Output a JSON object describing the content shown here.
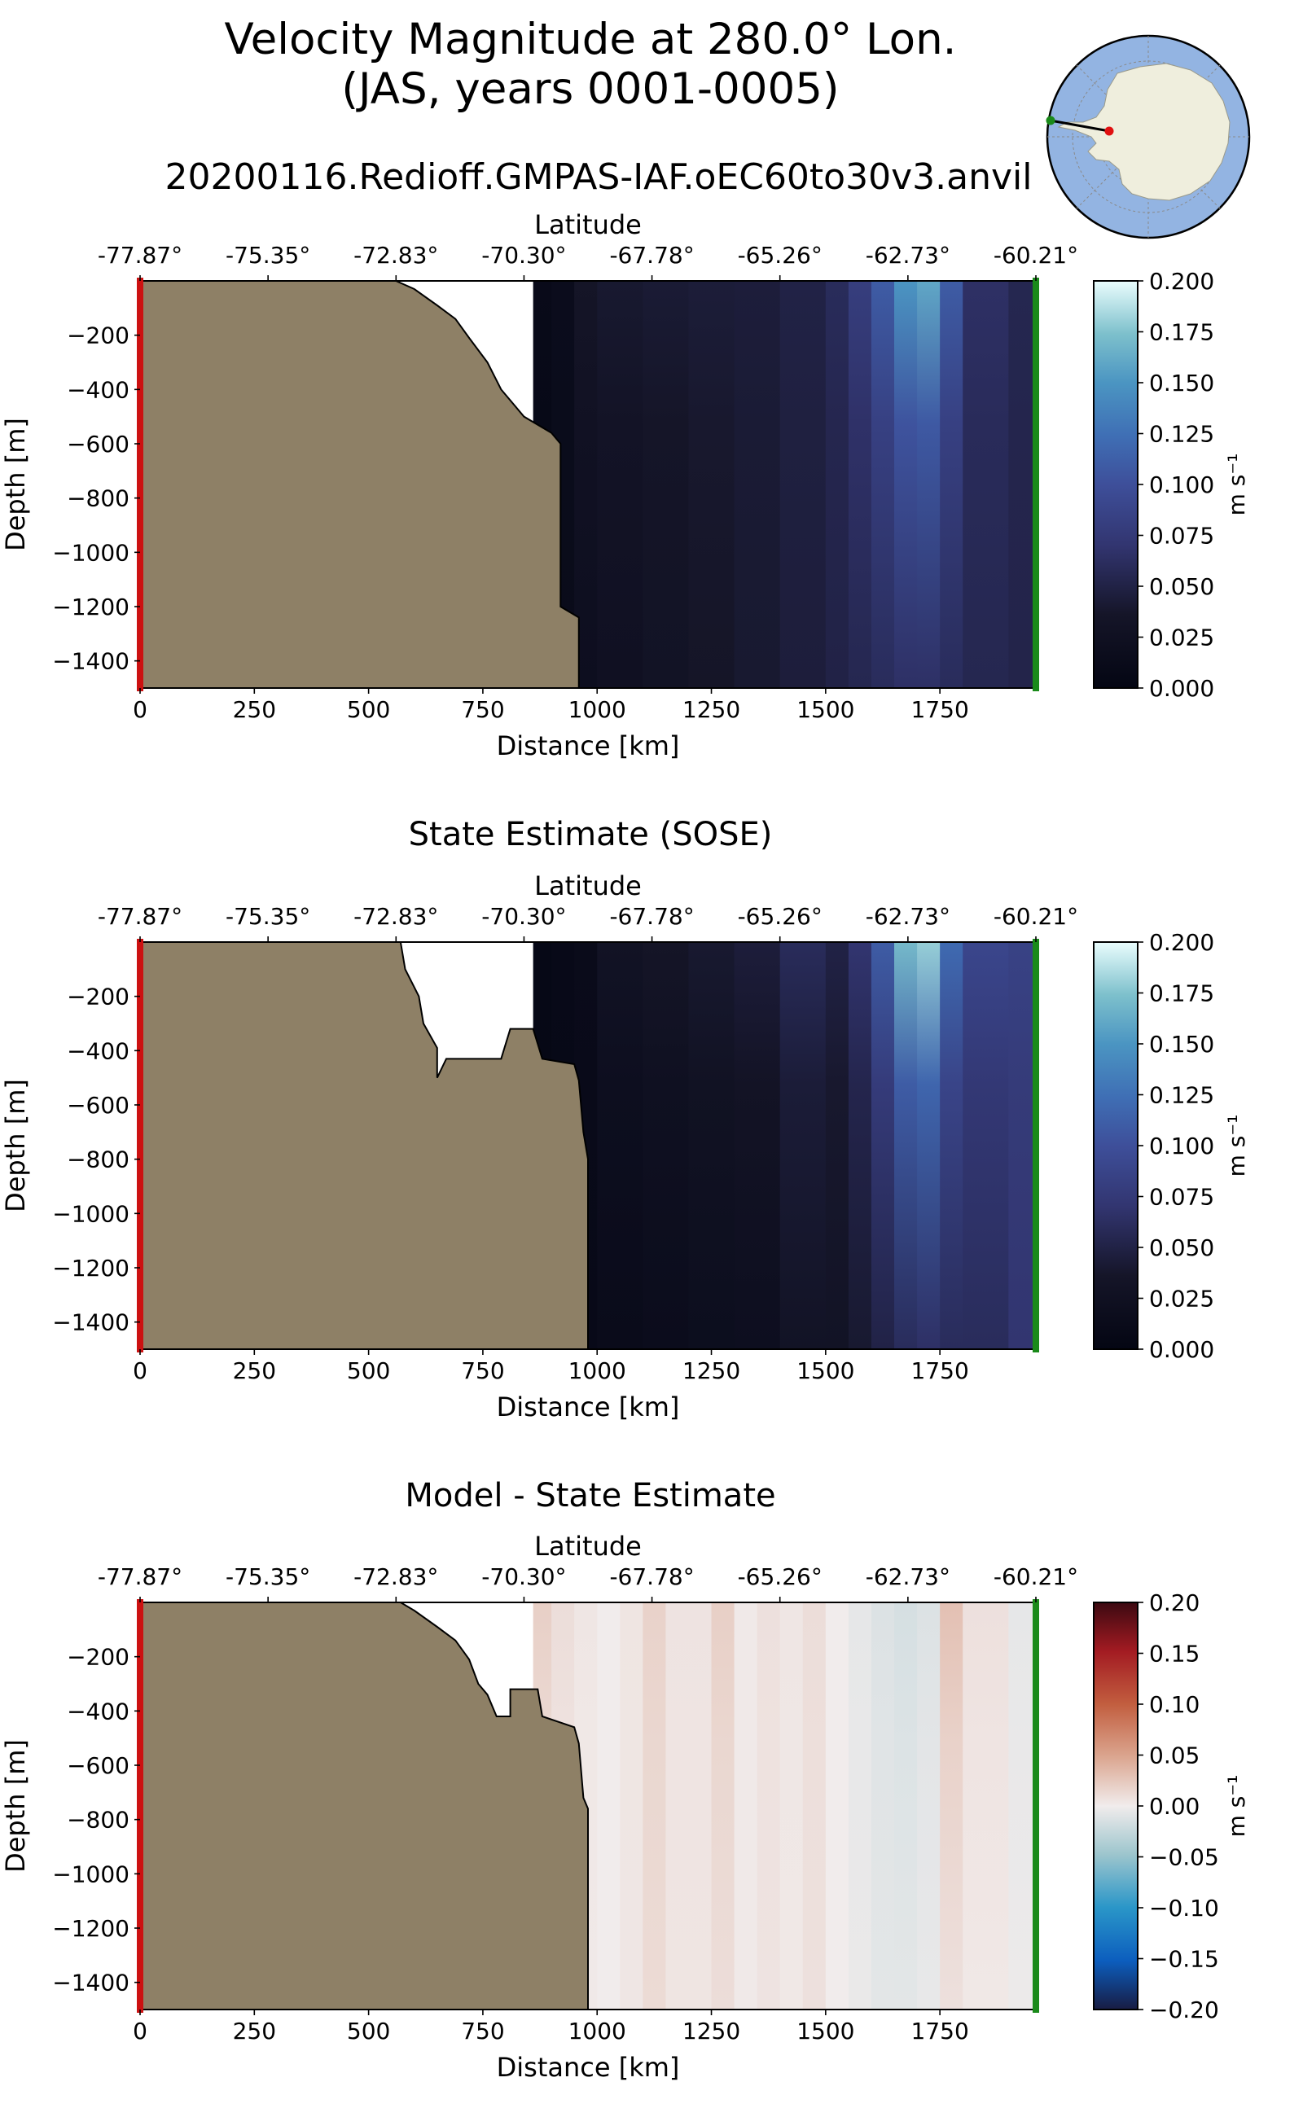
{
  "figure": {
    "title_line1": "Velocity Magnitude at 280.0° Lon.",
    "title_line2": "(JAS, years 0001-0005)",
    "subtitle": "20200116.Redioff.GMPAS-IAF.oEC60to30v3.anvil"
  },
  "colors": {
    "land": "#8e8066",
    "start_marker": "#cc1111",
    "end_marker": "#1a8a1a",
    "ocean_disk": "#93b4e2",
    "antarctica": "#efeedd"
  },
  "chart_data": [
    {
      "type": "heatmap",
      "title": "",
      "xlabel": "Distance [km]",
      "ylabel": "Depth [m]",
      "top_axis_label": "Latitude",
      "xlim": [
        0,
        1960
      ],
      "ylim": [
        -1500,
        0
      ],
      "xticks": [
        0,
        250,
        500,
        750,
        1000,
        1250,
        1500,
        1750
      ],
      "yticks": [
        -200,
        -400,
        -600,
        -800,
        -1000,
        -1200,
        -1400
      ],
      "lat_ticks": [
        "-77.87°",
        "-75.35°",
        "-72.83°",
        "-70.30°",
        "-67.78°",
        "-65.26°",
        "-62.73°",
        "-60.21°"
      ],
      "colorbar": {
        "label": "m s⁻¹",
        "min": 0.0,
        "max": 0.2,
        "ticks": [
          "0.000",
          "0.025",
          "0.050",
          "0.075",
          "0.100",
          "0.125",
          "0.150",
          "0.175",
          "0.200"
        ],
        "colormap": "ice"
      },
      "bathymetry_depth_m": [
        [
          0,
          0
        ],
        [
          560,
          0
        ],
        [
          600,
          -30
        ],
        [
          650,
          -90
        ],
        [
          690,
          -140
        ],
        [
          720,
          -210
        ],
        [
          760,
          -300
        ],
        [
          790,
          -400
        ],
        [
          840,
          -500
        ],
        [
          900,
          -560
        ],
        [
          920,
          -600
        ],
        [
          920,
          -1200
        ],
        [
          960,
          -1240
        ],
        [
          960,
          -1500
        ]
      ],
      "velocity_profile": {
        "x_km": [
          860,
          900,
          950,
          1000,
          1100,
          1200,
          1300,
          1400,
          1500,
          1550,
          1600,
          1650,
          1700,
          1750,
          1800,
          1900,
          1960
        ],
        "surface": [
          0.01,
          0.015,
          0.035,
          0.04,
          0.042,
          0.044,
          0.045,
          0.05,
          0.06,
          0.08,
          0.11,
          0.15,
          0.16,
          0.11,
          0.065,
          0.055,
          0.05
        ],
        "bottom": [
          0.005,
          0.012,
          0.02,
          0.025,
          0.03,
          0.035,
          0.04,
          0.045,
          0.05,
          0.055,
          0.06,
          0.065,
          0.065,
          0.06,
          0.055,
          0.052,
          0.05
        ]
      }
    },
    {
      "type": "heatmap",
      "title": "State Estimate (SOSE)",
      "xlabel": "Distance [km]",
      "ylabel": "Depth [m]",
      "top_axis_label": "Latitude",
      "xlim": [
        0,
        1960
      ],
      "ylim": [
        -1500,
        0
      ],
      "xticks": [
        0,
        250,
        500,
        750,
        1000,
        1250,
        1500,
        1750
      ],
      "yticks": [
        -200,
        -400,
        -600,
        -800,
        -1000,
        -1200,
        -1400
      ],
      "lat_ticks": [
        "-77.87°",
        "-75.35°",
        "-72.83°",
        "-70.30°",
        "-67.78°",
        "-65.26°",
        "-62.73°",
        "-60.21°"
      ],
      "colorbar": {
        "label": "m s⁻¹",
        "min": 0.0,
        "max": 0.2,
        "ticks": [
          "0.000",
          "0.025",
          "0.050",
          "0.075",
          "0.100",
          "0.125",
          "0.150",
          "0.175",
          "0.200"
        ],
        "colormap": "ice"
      },
      "bathymetry_depth_m": [
        [
          0,
          0
        ],
        [
          570,
          0
        ],
        [
          580,
          -100
        ],
        [
          610,
          -200
        ],
        [
          620,
          -300
        ],
        [
          650,
          -390
        ],
        [
          650,
          -500
        ],
        [
          670,
          -430
        ],
        [
          790,
          -430
        ],
        [
          810,
          -320
        ],
        [
          860,
          -320
        ],
        [
          880,
          -430
        ],
        [
          950,
          -450
        ],
        [
          960,
          -510
        ],
        [
          970,
          -700
        ],
        [
          980,
          -800
        ],
        [
          980,
          -1500
        ]
      ],
      "velocity_profile": {
        "x_km": [
          860,
          900,
          950,
          1000,
          1100,
          1200,
          1300,
          1400,
          1500,
          1550,
          1600,
          1650,
          1700,
          1750,
          1800,
          1900,
          1960
        ],
        "surface": [
          0.005,
          0.008,
          0.012,
          0.03,
          0.035,
          0.04,
          0.045,
          0.06,
          0.05,
          0.07,
          0.11,
          0.17,
          0.18,
          0.12,
          0.09,
          0.085,
          0.085
        ],
        "bottom": [
          0.003,
          0.005,
          0.008,
          0.012,
          0.015,
          0.018,
          0.02,
          0.03,
          0.03,
          0.04,
          0.05,
          0.06,
          0.065,
          0.06,
          0.06,
          0.07,
          0.07
        ]
      }
    },
    {
      "type": "heatmap",
      "title": "Model - State Estimate",
      "xlabel": "Distance [km]",
      "ylabel": "Depth [m]",
      "top_axis_label": "Latitude",
      "xlim": [
        0,
        1960
      ],
      "ylim": [
        -1500,
        0
      ],
      "xticks": [
        0,
        250,
        500,
        750,
        1000,
        1250,
        1500,
        1750
      ],
      "yticks": [
        -200,
        -400,
        -600,
        -800,
        -1000,
        -1200,
        -1400
      ],
      "lat_ticks": [
        "-77.87°",
        "-75.35°",
        "-72.83°",
        "-70.30°",
        "-67.78°",
        "-65.26°",
        "-62.73°",
        "-60.21°"
      ],
      "colorbar": {
        "label": "m s⁻¹",
        "min": -0.2,
        "max": 0.2,
        "ticks": [
          "−0.20",
          "−0.15",
          "−0.10",
          "−0.05",
          "0.00",
          "0.05",
          "0.10",
          "0.15",
          "0.20"
        ],
        "colormap": "balance"
      },
      "bathymetry_depth_m": [
        [
          0,
          0
        ],
        [
          570,
          0
        ],
        [
          600,
          -30
        ],
        [
          650,
          -90
        ],
        [
          690,
          -140
        ],
        [
          720,
          -210
        ],
        [
          740,
          -300
        ],
        [
          760,
          -340
        ],
        [
          780,
          -420
        ],
        [
          810,
          -420
        ],
        [
          810,
          -320
        ],
        [
          870,
          -320
        ],
        [
          880,
          -420
        ],
        [
          950,
          -460
        ],
        [
          960,
          -520
        ],
        [
          970,
          -720
        ],
        [
          980,
          -760
        ],
        [
          980,
          -1500
        ]
      ],
      "velocity_profile": {
        "x_km": [
          860,
          900,
          950,
          1000,
          1050,
          1100,
          1150,
          1250,
          1300,
          1350,
          1400,
          1450,
          1500,
          1550,
          1600,
          1650,
          1700,
          1750,
          1800,
          1900,
          1960
        ],
        "surface": [
          0.02,
          0.01,
          0.004,
          0.0,
          0.005,
          0.018,
          0.006,
          0.02,
          0.002,
          0.008,
          0.004,
          0.01,
          0.0,
          -0.006,
          -0.012,
          -0.016,
          -0.012,
          0.03,
          0.008,
          -0.006,
          -0.02
        ],
        "bottom": [
          0.006,
          0.004,
          0.002,
          0.0,
          0.004,
          0.012,
          0.005,
          0.01,
          0.002,
          0.006,
          0.003,
          0.008,
          0.0,
          -0.004,
          -0.008,
          -0.008,
          -0.005,
          0.008,
          0.003,
          -0.003,
          -0.01
        ]
      }
    }
  ]
}
